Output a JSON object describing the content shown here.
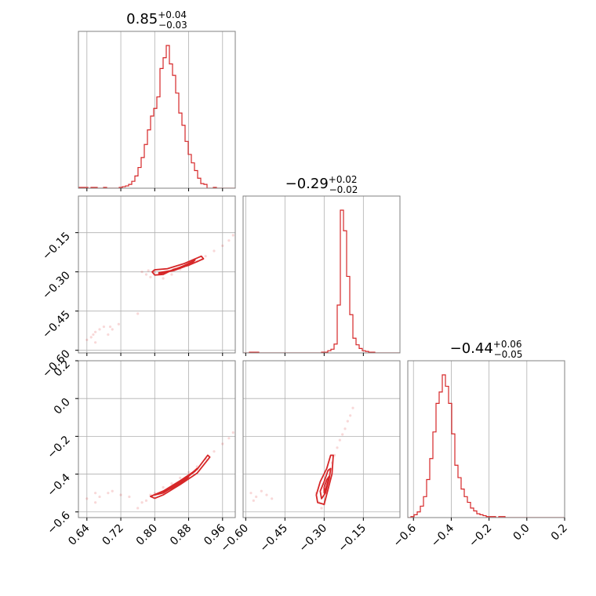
{
  "chart_data": {
    "type": "corner",
    "color": "#d62728",
    "grid": true,
    "panels": [
      {
        "id": "hist-0",
        "row": 0,
        "col": 0,
        "kind": "histogram",
        "title": {
          "median": "0.85",
          "plus": "+0.04",
          "minus": "−0.03"
        },
        "xlim": [
          0.62,
          0.99
        ],
        "bins": {
          "start": 0.62,
          "width": 0.0074,
          "counts": [
            1,
            1,
            1,
            0,
            1,
            1,
            0,
            0,
            1,
            0,
            0,
            0,
            0,
            1,
            2,
            3,
            5,
            9,
            16,
            27,
            40,
            57,
            76,
            94,
            104,
            119,
            156,
            170,
            186,
            162,
            147,
            124,
            98,
            82,
            61,
            44,
            33,
            23,
            13,
            6,
            5,
            0,
            0,
            1,
            0,
            0,
            0,
            0,
            0,
            0
          ]
        }
      },
      {
        "id": "scatter-1-0",
        "row": 1,
        "col": 0,
        "kind": "scatter",
        "xlim": [
          0.62,
          0.99
        ],
        "ylim": [
          -0.61,
          -0.01
        ],
        "points": [
          [
            0.64,
            -0.56
          ],
          [
            0.65,
            -0.55
          ],
          [
            0.655,
            -0.54
          ],
          [
            0.66,
            -0.53
          ],
          [
            0.67,
            -0.52
          ],
          [
            0.68,
            -0.51
          ],
          [
            0.695,
            -0.51
          ],
          [
            0.7,
            -0.52
          ],
          [
            0.715,
            -0.5
          ],
          [
            0.66,
            -0.57
          ],
          [
            0.69,
            -0.54
          ],
          [
            0.76,
            -0.46
          ],
          [
            0.77,
            -0.3
          ],
          [
            0.78,
            -0.31
          ],
          [
            0.785,
            -0.295
          ],
          [
            0.79,
            -0.32
          ],
          [
            0.8,
            -0.3
          ],
          [
            0.82,
            -0.325
          ],
          [
            0.84,
            -0.31
          ],
          [
            0.86,
            -0.29
          ],
          [
            0.88,
            -0.27
          ],
          [
            0.9,
            -0.26
          ],
          [
            0.92,
            -0.24
          ],
          [
            0.94,
            -0.22
          ],
          [
            0.96,
            -0.2
          ],
          [
            0.975,
            -0.18
          ],
          [
            0.985,
            -0.16
          ]
        ],
        "contours": [
          [
            [
              0.794,
              -0.3
            ],
            [
              0.8,
              -0.292
            ],
            [
              0.83,
              -0.288
            ],
            [
              0.87,
              -0.268
            ],
            [
              0.91,
              -0.24
            ],
            [
              0.915,
              -0.25
            ],
            [
              0.88,
              -0.275
            ],
            [
              0.845,
              -0.29
            ],
            [
              0.82,
              -0.31
            ],
            [
              0.8,
              -0.312
            ]
          ],
          [
            [
              0.81,
              -0.303
            ],
            [
              0.84,
              -0.295
            ],
            [
              0.87,
              -0.276
            ],
            [
              0.895,
              -0.255
            ],
            [
              0.89,
              -0.263
            ],
            [
              0.86,
              -0.283
            ],
            [
              0.83,
              -0.3
            ],
            [
              0.81,
              -0.309
            ]
          ],
          [
            [
              0.828,
              -0.3
            ],
            [
              0.85,
              -0.29
            ],
            [
              0.875,
              -0.272
            ],
            [
              0.87,
              -0.28
            ],
            [
              0.845,
              -0.295
            ]
          ]
        ]
      },
      {
        "id": "scatter-2-0",
        "row": 2,
        "col": 0,
        "kind": "scatter",
        "xlim": [
          0.62,
          0.99
        ],
        "ylim": [
          -0.63,
          0.2
        ],
        "points": [
          [
            0.64,
            -0.53
          ],
          [
            0.66,
            -0.5
          ],
          [
            0.67,
            -0.52
          ],
          [
            0.69,
            -0.5
          ],
          [
            0.7,
            -0.49
          ],
          [
            0.72,
            -0.51
          ],
          [
            0.74,
            -0.52
          ],
          [
            0.66,
            -0.55
          ],
          [
            0.76,
            -0.58
          ],
          [
            0.77,
            -0.55
          ],
          [
            0.78,
            -0.54
          ],
          [
            0.79,
            -0.51
          ],
          [
            0.8,
            -0.5
          ],
          [
            0.82,
            -0.47
          ],
          [
            0.84,
            -0.45
          ],
          [
            0.86,
            -0.42
          ],
          [
            0.88,
            -0.39
          ],
          [
            0.9,
            -0.36
          ],
          [
            0.92,
            -0.32
          ],
          [
            0.94,
            -0.28
          ],
          [
            0.96,
            -0.24
          ],
          [
            0.975,
            -0.21
          ],
          [
            0.985,
            -0.18
          ]
        ],
        "contours": [
          [
            [
              0.79,
              -0.518
            ],
            [
              0.82,
              -0.49
            ],
            [
              0.86,
              -0.435
            ],
            [
              0.9,
              -0.375
            ],
            [
              0.925,
              -0.3
            ],
            [
              0.93,
              -0.31
            ],
            [
              0.9,
              -0.395
            ],
            [
              0.86,
              -0.455
            ],
            [
              0.82,
              -0.51
            ],
            [
              0.8,
              -0.528
            ]
          ],
          [
            [
              0.8,
              -0.51
            ],
            [
              0.84,
              -0.47
            ],
            [
              0.88,
              -0.41
            ],
            [
              0.9,
              -0.37
            ],
            [
              0.895,
              -0.385
            ],
            [
              0.86,
              -0.445
            ],
            [
              0.82,
              -0.5
            ]
          ],
          [
            [
              0.82,
              -0.495
            ],
            [
              0.855,
              -0.455
            ],
            [
              0.88,
              -0.415
            ],
            [
              0.875,
              -0.425
            ],
            [
              0.85,
              -0.465
            ]
          ]
        ]
      },
      {
        "id": "hist-1",
        "row": 1,
        "col": 1,
        "kind": "histogram",
        "title": {
          "median": "−0.29",
          "plus": "+0.02",
          "minus": "−0.02"
        },
        "xlim": [
          -0.61,
          -0.01
        ],
        "bins": {
          "start": -0.61,
          "width": 0.012,
          "counts": [
            0,
            0,
            1,
            1,
            1,
            0,
            0,
            0,
            0,
            0,
            0,
            0,
            0,
            0,
            0,
            0,
            0,
            0,
            0,
            0,
            0,
            0,
            0,
            0,
            0,
            1,
            1,
            3,
            5,
            12,
            65,
            194,
            166,
            104,
            52,
            20,
            11,
            6,
            3,
            2,
            1,
            1,
            0,
            0,
            0,
            0,
            0,
            0,
            0,
            0
          ]
        }
      },
      {
        "id": "scatter-2-1",
        "row": 2,
        "col": 1,
        "kind": "scatter",
        "xlim": [
          -0.61,
          -0.01
        ],
        "ylim": [
          -0.63,
          0.2
        ],
        "points": [
          [
            -0.58,
            -0.5
          ],
          [
            -0.56,
            -0.52
          ],
          [
            -0.54,
            -0.49
          ],
          [
            -0.52,
            -0.51
          ],
          [
            -0.5,
            -0.53
          ],
          [
            -0.57,
            -0.54
          ],
          [
            -0.33,
            -0.5
          ],
          [
            -0.32,
            -0.55
          ],
          [
            -0.31,
            -0.58
          ],
          [
            -0.3,
            -0.56
          ],
          [
            -0.29,
            -0.44
          ],
          [
            -0.28,
            -0.38
          ],
          [
            -0.27,
            -0.34
          ],
          [
            -0.26,
            -0.3
          ],
          [
            -0.25,
            -0.26
          ],
          [
            -0.24,
            -0.22
          ],
          [
            -0.23,
            -0.19
          ],
          [
            -0.22,
            -0.16
          ],
          [
            -0.21,
            -0.12
          ],
          [
            -0.2,
            -0.09
          ],
          [
            -0.19,
            -0.05
          ]
        ],
        "contours": [
          [
            [
              -0.325,
              -0.55
            ],
            [
              -0.3,
              -0.56
            ],
            [
              -0.285,
              -0.48
            ],
            [
              -0.27,
              -0.4
            ],
            [
              -0.265,
              -0.3
            ],
            [
              -0.275,
              -0.3
            ],
            [
              -0.29,
              -0.37
            ],
            [
              -0.315,
              -0.44
            ],
            [
              -0.33,
              -0.51
            ]
          ],
          [
            [
              -0.31,
              -0.53
            ],
            [
              -0.295,
              -0.5
            ],
            [
              -0.28,
              -0.42
            ],
            [
              -0.275,
              -0.37
            ],
            [
              -0.285,
              -0.38
            ],
            [
              -0.3,
              -0.44
            ],
            [
              -0.315,
              -0.49
            ]
          ],
          [
            [
              -0.3,
              -0.5
            ],
            [
              -0.29,
              -0.46
            ],
            [
              -0.28,
              -0.41
            ],
            [
              -0.29,
              -0.43
            ],
            [
              -0.3,
              -0.47
            ]
          ]
        ]
      },
      {
        "id": "hist-2",
        "row": 2,
        "col": 2,
        "kind": "histogram",
        "title": {
          "median": "−0.44",
          "plus": "+0.06",
          "minus": "−0.05"
        },
        "xlim": [
          -0.63,
          0.2
        ],
        "bins": {
          "start": -0.63,
          "width": 0.0166,
          "counts": [
            0,
            1,
            3,
            6,
            12,
            22,
            40,
            62,
            90,
            120,
            132,
            150,
            138,
            120,
            88,
            55,
            42,
            30,
            22,
            16,
            10,
            7,
            4,
            3,
            2,
            1,
            1,
            1,
            0,
            1,
            1,
            0,
            0,
            0,
            0,
            0,
            0,
            0,
            0,
            0,
            0,
            0,
            0,
            0,
            0,
            0,
            0,
            0,
            0,
            0
          ]
        }
      }
    ],
    "axes": {
      "x": [
        {
          "col": 0,
          "ticks": [
            0.64,
            0.72,
            0.8,
            0.88,
            0.96
          ],
          "labels": [
            "0.64",
            "0.72",
            "0.80",
            "0.88",
            "0.96"
          ]
        },
        {
          "col": 1,
          "ticks": [
            -0.6,
            -0.45,
            -0.3,
            -0.15
          ],
          "labels": [
            "−0.60",
            "−0.45",
            "−0.30",
            "−0.15"
          ]
        },
        {
          "col": 2,
          "ticks": [
            -0.6,
            -0.4,
            -0.2,
            0.0,
            0.2
          ],
          "labels": [
            "−0.6",
            "−0.4",
            "−0.2",
            "0.0",
            "0.2"
          ]
        }
      ],
      "y": [
        {
          "row": 1,
          "ticks": [
            -0.15,
            -0.3,
            -0.45,
            -0.6
          ],
          "labels": [
            "−0.15",
            "−0.30",
            "−0.45",
            "−0.60"
          ]
        },
        {
          "row": 2,
          "ticks": [
            0.2,
            0.0,
            -0.2,
            -0.4,
            -0.6
          ],
          "labels": [
            "0.2",
            "0.0",
            "−0.2",
            "−0.4",
            "−0.6"
          ]
        }
      ]
    }
  }
}
